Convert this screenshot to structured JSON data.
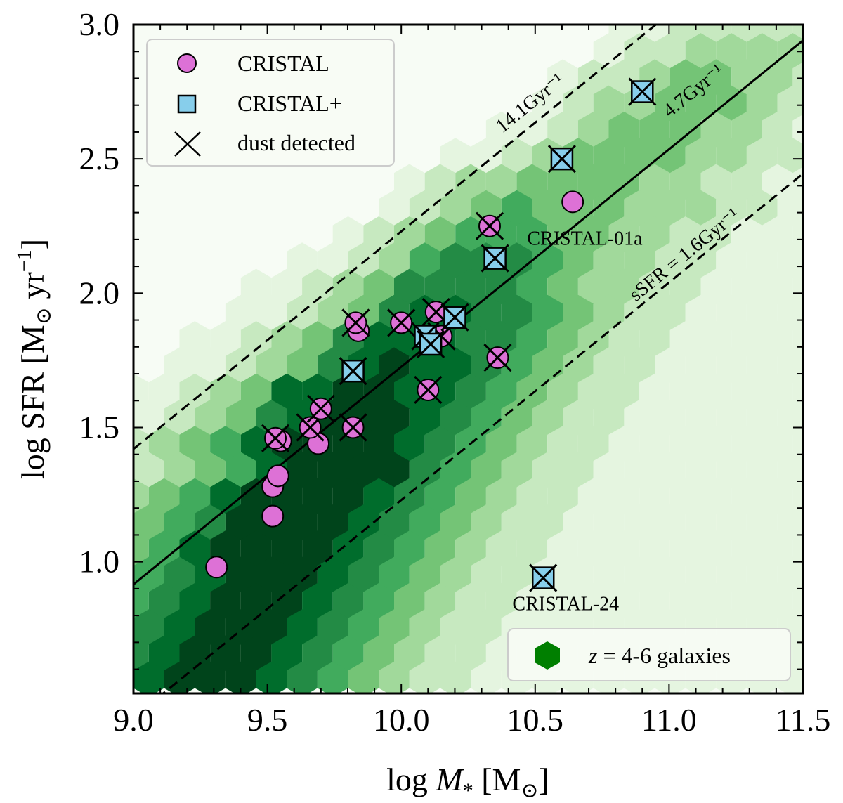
{
  "chart_data": {
    "type": "scatter",
    "title": "",
    "xlabel": "log M* [M⊙]",
    "xlabel_parts": {
      "prefix": "log ",
      "symbol": "M",
      "sub": "*",
      "unit": "[M⊙]"
    },
    "ylabel": "log SFR [M⊙ yr⁻¹]",
    "xlim": [
      9.0,
      11.5
    ],
    "ylim": [
      0.51,
      3.0
    ],
    "xticks": [
      9.0,
      9.5,
      10.0,
      10.5,
      11.0,
      11.5
    ],
    "xtick_labels": [
      "9.0",
      "9.5",
      "10.0",
      "10.5",
      "11.0",
      "11.5"
    ],
    "yticks": [
      1.0,
      1.5,
      2.0,
      2.5,
      3.0
    ],
    "ytick_labels": [
      "1.0",
      "1.5",
      "2.0",
      "2.5",
      "3.0"
    ],
    "grid": false,
    "colors": {
      "cristal": "#dd71d6",
      "cristal_plus": "#87ceeb",
      "hex_dark": "#00441b",
      "hex_light": "#f7fcf5",
      "legend_hex": "#007f00"
    },
    "legend_top_left": {
      "placement": "top-left",
      "entries": [
        {
          "marker": "circle",
          "label": "CRISTAL"
        },
        {
          "marker": "square",
          "label": "CRISTAL+"
        },
        {
          "marker": "x",
          "label": "dust detected"
        }
      ]
    },
    "legend_bottom_right": {
      "placement": "bottom-right",
      "entries": [
        {
          "marker": "hexagon",
          "label": "z = 4-6 galaxies"
        }
      ]
    },
    "ssfr_lines": [
      {
        "label": "14.1Gyr⁻¹",
        "log_ssfr": -8.85,
        "style": "dashed"
      },
      {
        "label": "4.7Gyr⁻¹",
        "log_ssfr": -9.33,
        "style": "solid"
      },
      {
        "label": "sSFR = 1.6Gyr⁻¹",
        "log_ssfr": -9.8,
        "style": "dashed"
      }
    ],
    "line_slope": 0.81,
    "line_intercepts_at_x9": [
      1.42,
      0.916,
      0.42
    ],
    "annotations": [
      {
        "text": "CRISTAL-01a",
        "x": 10.47,
        "y": 2.18
      },
      {
        "text": "CRISTAL-24",
        "x": 10.52,
        "y": 0.82
      }
    ],
    "series": [
      {
        "name": "CRISTAL",
        "marker": "circle",
        "points": [
          {
            "x": 9.31,
            "y": 0.98,
            "dust": false
          },
          {
            "x": 9.52,
            "y": 1.17,
            "dust": false
          },
          {
            "x": 9.52,
            "y": 1.28,
            "dust": false
          },
          {
            "x": 9.54,
            "y": 1.32,
            "dust": false
          },
          {
            "x": 9.55,
            "y": 1.45,
            "dust": false
          },
          {
            "x": 9.53,
            "y": 1.46,
            "dust": true
          },
          {
            "x": 9.69,
            "y": 1.44,
            "dust": false
          },
          {
            "x": 9.66,
            "y": 1.5,
            "dust": true
          },
          {
            "x": 9.7,
            "y": 1.57,
            "dust": true
          },
          {
            "x": 9.82,
            "y": 1.5,
            "dust": true
          },
          {
            "x": 9.84,
            "y": 1.86,
            "dust": false
          },
          {
            "x": 9.83,
            "y": 1.89,
            "dust": true
          },
          {
            "x": 10.0,
            "y": 1.89,
            "dust": true
          },
          {
            "x": 10.1,
            "y": 1.64,
            "dust": true
          },
          {
            "x": 10.13,
            "y": 1.93,
            "dust": true
          },
          {
            "x": 10.15,
            "y": 1.84,
            "dust": true
          },
          {
            "x": 10.36,
            "y": 1.76,
            "dust": true
          },
          {
            "x": 10.33,
            "y": 2.25,
            "dust": true
          },
          {
            "x": 10.64,
            "y": 2.34,
            "dust": false
          }
        ]
      },
      {
        "name": "CRISTAL+",
        "marker": "square",
        "points": [
          {
            "x": 9.82,
            "y": 1.71,
            "dust": true
          },
          {
            "x": 10.09,
            "y": 1.84,
            "dust": true
          },
          {
            "x": 10.11,
            "y": 1.81,
            "dust": true
          },
          {
            "x": 10.2,
            "y": 1.91,
            "dust": true
          },
          {
            "x": 10.35,
            "y": 2.13,
            "dust": true
          },
          {
            "x": 10.6,
            "y": 2.5,
            "dust": true
          },
          {
            "x": 10.9,
            "y": 2.75,
            "dust": true
          },
          {
            "x": 10.53,
            "y": 0.94,
            "dust": true
          }
        ]
      }
    ],
    "hexbin": {
      "name": "z = 4-6 galaxies",
      "x_spacing": 0.1145,
      "y_spacing": 0.0975,
      "y_top": 3.0,
      "levels_max": 8,
      "rows": [
        "00000000000000001122222",
        "00000000000000012233332",
        "00000000000000122344332",
        "0000000000000123344432",
        "00000000000011234443321",
        "0000000000112344443322",
        "00000000012334444332211",
        "0000000012345444333221",
        "00000001234555443322111",
        "0000011235666543322111",
        "00001123466665433221111",
        "0001123467766543221111",
        "00112346777665432211111",
        "0112346787765432211111",
        "11234778877654322111111",
        "1234678887654322111111",
        "23457888876543221111111",
        "2345788886543221111111",
        "34578888765432211111111",
        "4568888765432211111111",
        "45788887654322111111111",
        "5678887654322111111111",
        "56788876543221111111111",
        "6788876543221111111111",
        "67888765432211111111111",
        "7888765432211111111111"
      ]
    }
  }
}
